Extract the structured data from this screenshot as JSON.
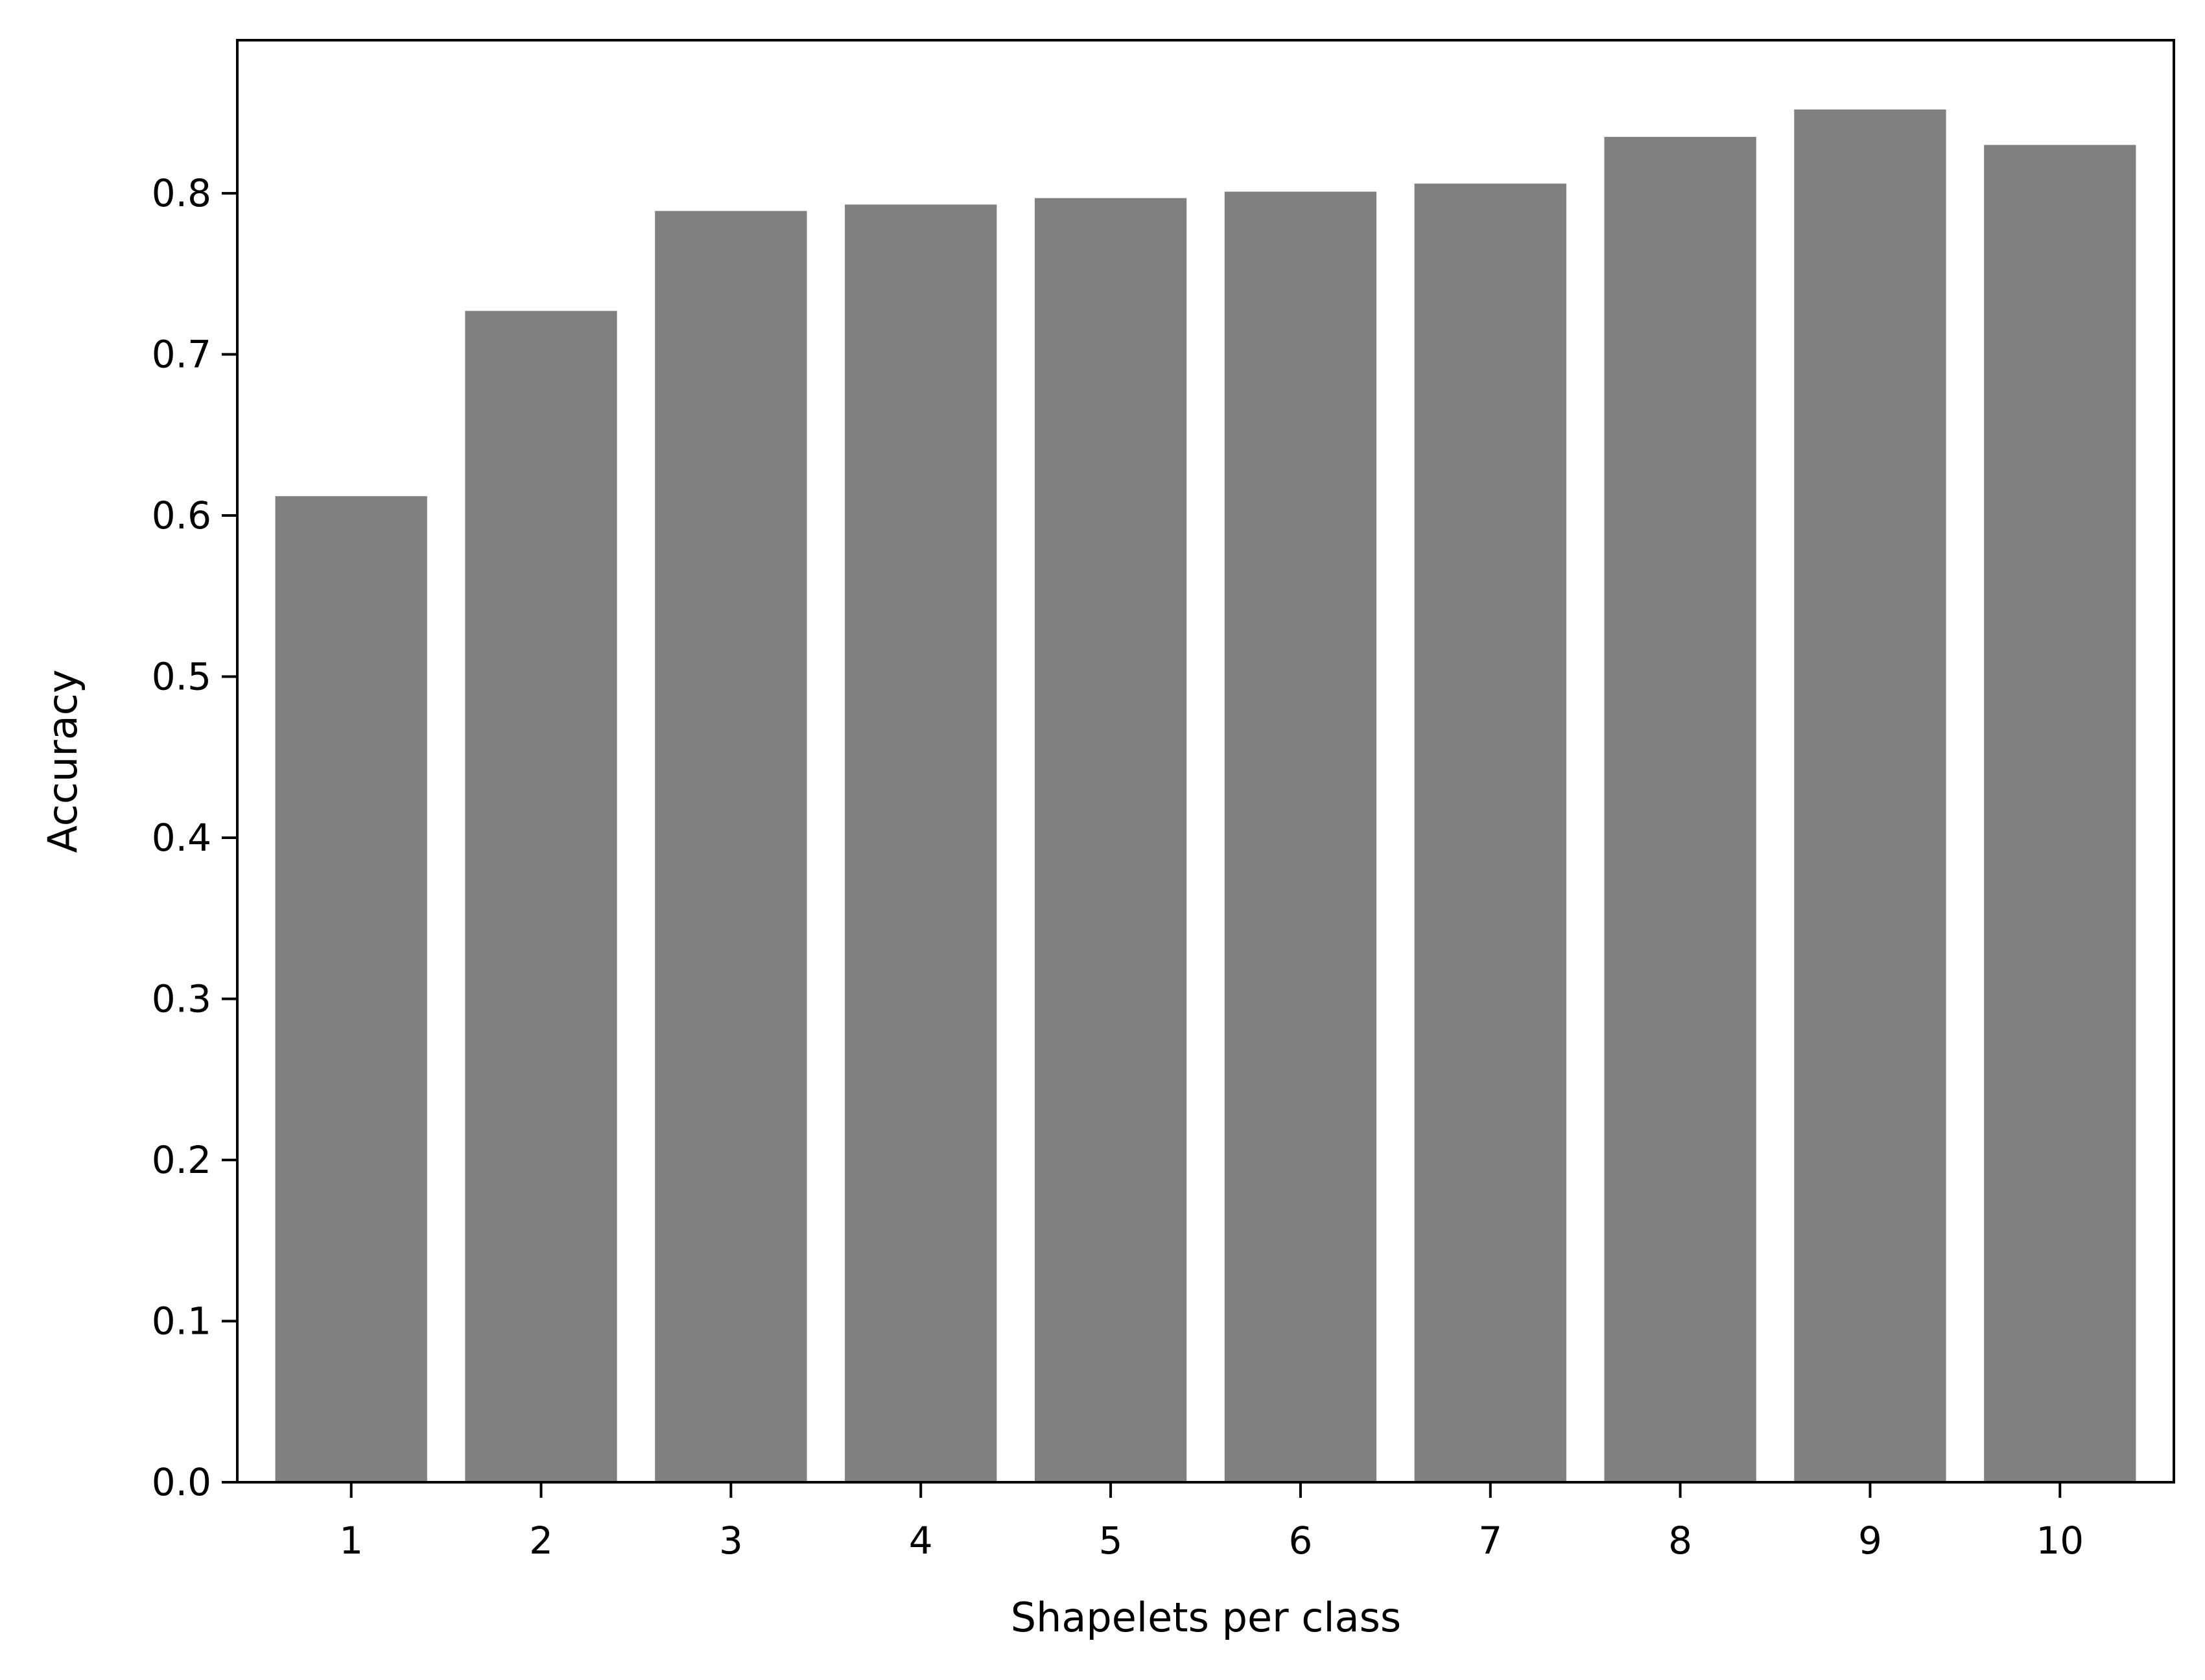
{
  "chart_data": {
    "type": "bar",
    "title": "",
    "xlabel": "Shapelets per class",
    "ylabel": "Accuracy",
    "categories": [
      "1",
      "2",
      "3",
      "4",
      "5",
      "6",
      "7",
      "8",
      "9",
      "10"
    ],
    "values": [
      0.612,
      0.727,
      0.789,
      0.793,
      0.797,
      0.801,
      0.806,
      0.835,
      0.852,
      0.83
    ],
    "ylim": [
      0,
      0.895
    ],
    "yticks": [
      "0.0",
      "0.1",
      "0.2",
      "0.3",
      "0.4",
      "0.5",
      "0.6",
      "0.7",
      "0.8"
    ],
    "grid": false,
    "legend": "none",
    "bar_color": "#808080"
  }
}
